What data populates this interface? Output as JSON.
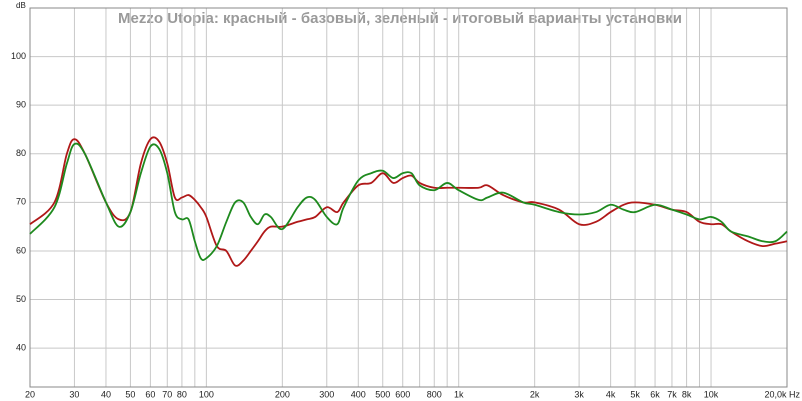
{
  "chart_data": {
    "type": "line",
    "title": "Mezzo Utopia: красный - базовый, зеленый - итоговый варианты установки",
    "y_label": "dB",
    "log_x": true,
    "grid": true,
    "x": [
      20,
      25,
      28,
      30,
      33,
      40,
      45,
      50,
      55,
      60,
      65,
      70,
      75,
      80,
      85,
      90,
      95,
      100,
      110,
      120,
      130,
      140,
      150,
      160,
      170,
      180,
      200,
      230,
      250,
      270,
      300,
      330,
      350,
      400,
      450,
      500,
      550,
      600,
      650,
      700,
      800,
      900,
      1000,
      1200,
      1300,
      1500,
      1800,
      2000,
      2500,
      3000,
      3500,
      4000,
      4500,
      5000,
      6000,
      7000,
      8000,
      9000,
      10000,
      11000,
      12000,
      14000,
      16000,
      18000,
      20000
    ],
    "series": [
      {
        "color": "#b01818",
        "values": [
          65.5,
          70,
          80,
          83,
          80,
          70,
          66.5,
          68,
          78,
          83,
          82.5,
          78,
          71,
          71,
          71.5,
          70.5,
          69,
          67,
          61,
          60,
          57,
          58,
          60,
          62,
          64,
          65,
          65,
          66,
          66.5,
          67,
          69,
          68,
          70,
          73.5,
          74,
          76,
          74,
          75,
          75.5,
          74,
          73,
          73,
          73,
          73,
          73.5,
          71.5,
          70,
          70,
          68.5,
          65.5,
          66,
          68,
          69.5,
          70,
          69.5,
          68.5,
          68,
          66,
          65.5,
          65.5,
          64,
          62,
          61,
          61.5,
          62
        ]
      },
      {
        "color": "#1e8a1e",
        "values": [
          63.5,
          69,
          78,
          82,
          80,
          70,
          65,
          68,
          76,
          81.5,
          81,
          76,
          68,
          66.5,
          66.5,
          62,
          58.5,
          58.5,
          61,
          66,
          70,
          70,
          67,
          65.5,
          67.5,
          67,
          64.5,
          69,
          71,
          70.5,
          67,
          65.5,
          69,
          74.5,
          76,
          76.5,
          75,
          76,
          76,
          73.5,
          72.5,
          74,
          72.5,
          70.5,
          71,
          72,
          70,
          69.5,
          68,
          67.5,
          68,
          69.5,
          68.5,
          68,
          69.5,
          68.5,
          67.5,
          66.5,
          67,
          66,
          64,
          63,
          62,
          62,
          64
        ]
      }
    ],
    "xlim": [
      20,
      20000
    ],
    "ylim": [
      32,
      110
    ],
    "yticks": [
      40,
      50,
      60,
      70,
      80,
      90,
      100
    ],
    "xticks": [
      20,
      30,
      40,
      50,
      60,
      70,
      80,
      {
        "value": 90,
        "label": null
      },
      100,
      200,
      300,
      400,
      500,
      600,
      {
        "value": 700,
        "label": null
      },
      800,
      {
        "value": 900,
        "label": null
      },
      {
        "value": 1000,
        "label": "1k"
      },
      {
        "value": 2000,
        "label": "2k"
      },
      {
        "value": 3000,
        "label": "3k"
      },
      {
        "value": 4000,
        "label": "4k"
      },
      {
        "value": 5000,
        "label": "5k"
      },
      {
        "value": 6000,
        "label": "6k"
      },
      {
        "value": 7000,
        "label": "7k"
      },
      {
        "value": 8000,
        "label": "8k"
      },
      {
        "value": 9000,
        "label": null
      },
      {
        "value": 10000,
        "label": "10k"
      },
      {
        "value": 20000,
        "label": "20,0k Hz"
      }
    ]
  }
}
